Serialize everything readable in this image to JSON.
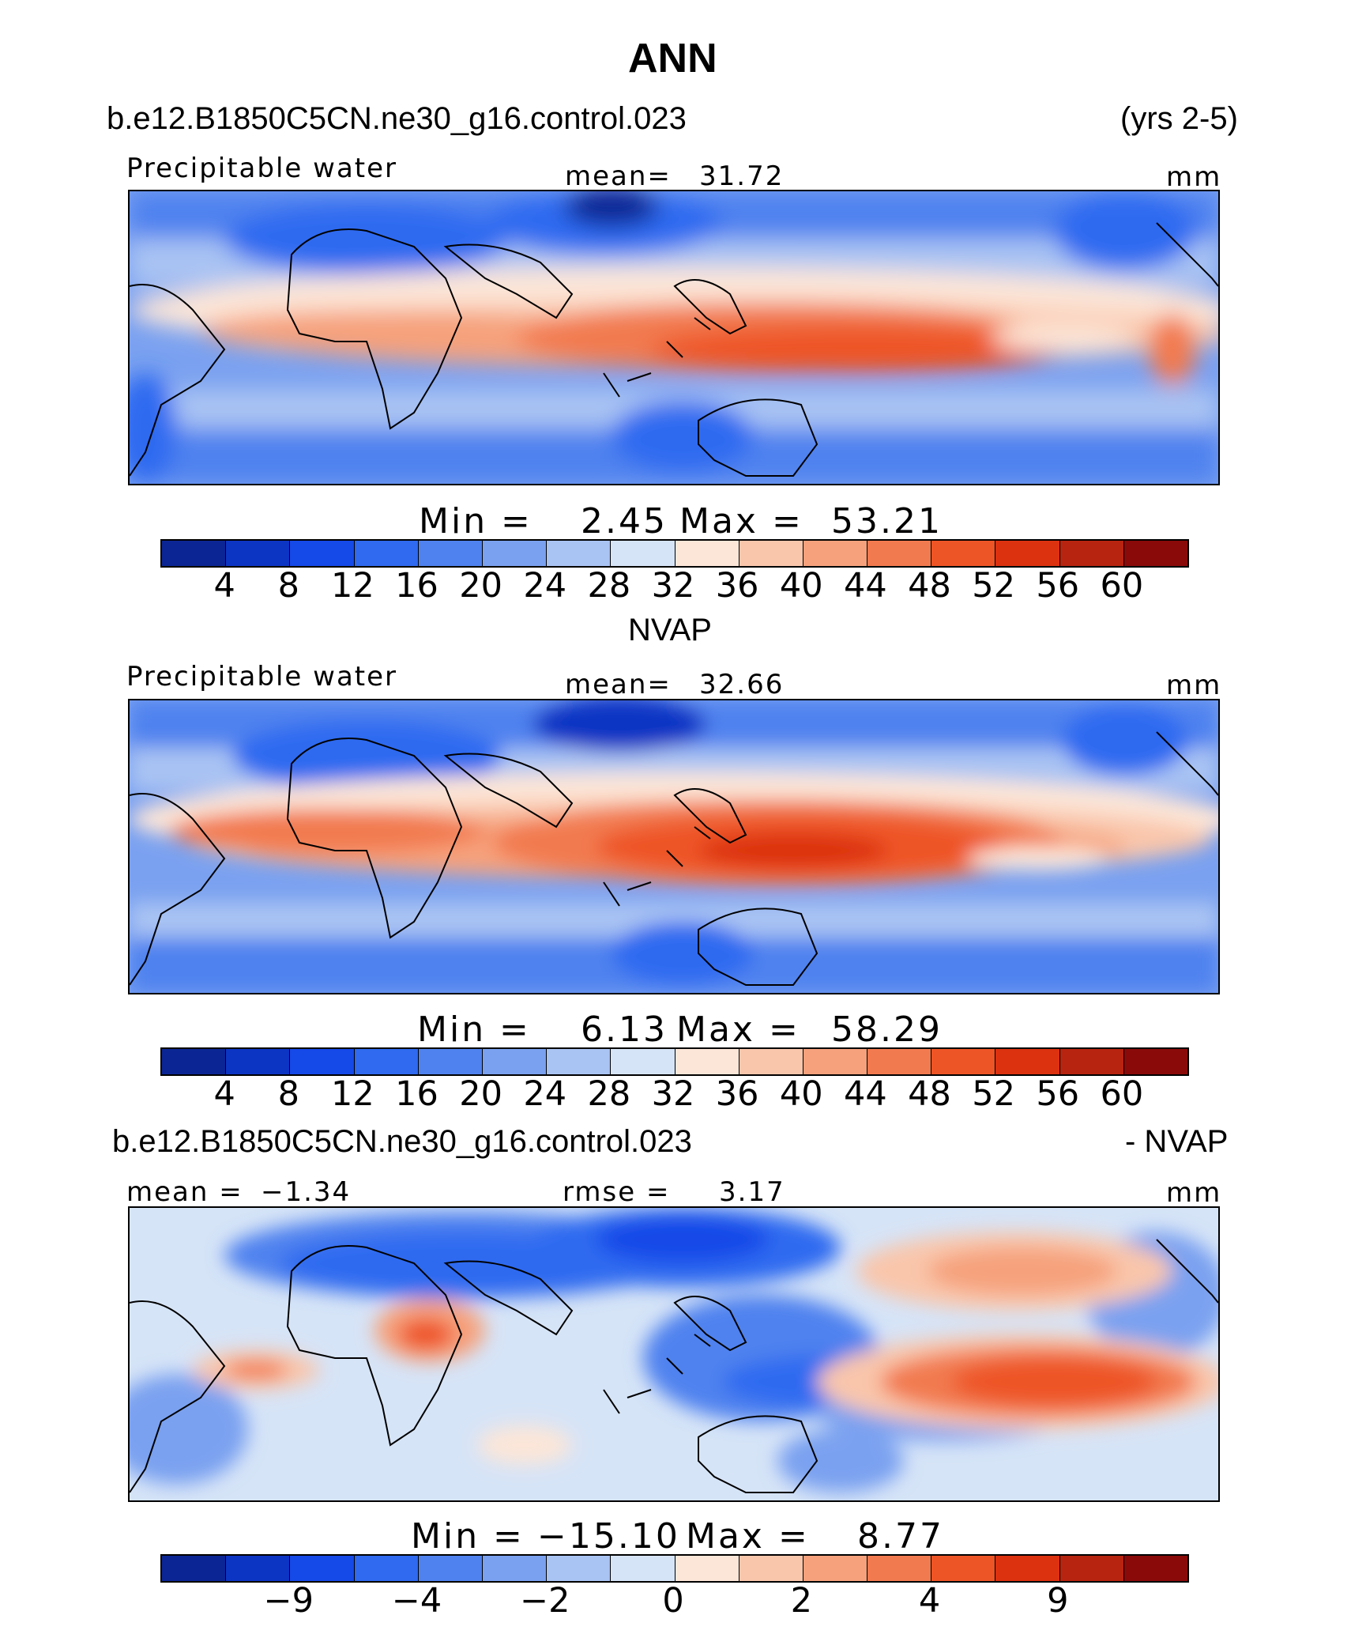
{
  "title": "ANN",
  "header": {
    "case": "b.e12.B1850C5CN.ne30_g16.control.023",
    "years": "(yrs 2-5)"
  },
  "panel1": {
    "left_label": "Precipitable water",
    "mean_label": "mean=",
    "mean_value": "31.72",
    "units": "mm",
    "min_label": "Min =",
    "min_value": "2.45",
    "max_label": "Max =",
    "max_value": "53.21",
    "ticks": [
      "4",
      "8",
      "12",
      "16",
      "20",
      "24",
      "28",
      "32",
      "36",
      "40",
      "44",
      "48",
      "52",
      "56",
      "60"
    ]
  },
  "panel2": {
    "title": "NVAP",
    "left_label": "Precipitable water",
    "mean_label": "mean=",
    "mean_value": "32.66",
    "units": "mm",
    "min_label": "Min =",
    "min_value": "6.13",
    "max_label": "Max =",
    "max_value": "58.29",
    "ticks": [
      "4",
      "8",
      "12",
      "16",
      "20",
      "24",
      "28",
      "32",
      "36",
      "40",
      "44",
      "48",
      "52",
      "56",
      "60"
    ]
  },
  "panel3": {
    "title_left": "b.e12.B1850C5CN.ne30_g16.control.023",
    "title_right": "- NVAP",
    "mean_label": "mean =",
    "mean_value": "−1.34",
    "rmse_label": "rmse =",
    "rmse_value": "3.17",
    "units": "mm",
    "min_label": "Min =",
    "min_value": "−15.10",
    "max_label": "Max =",
    "max_value": "8.77",
    "ticks": [
      "−9",
      "−4",
      "−2",
      "0",
      "2",
      "4",
      "9"
    ]
  },
  "colors": {
    "scale": [
      "#0b2694",
      "#0d35c4",
      "#1549e8",
      "#2f6af0",
      "#4f82ef",
      "#7aa1f0",
      "#a9c3f3",
      "#d6e4f7",
      "#fce6d8",
      "#f9c6ab",
      "#f6a17c",
      "#f27a4f",
      "#ee5526",
      "#dc3210",
      "#b7240f",
      "#8a0a0a"
    ]
  }
}
